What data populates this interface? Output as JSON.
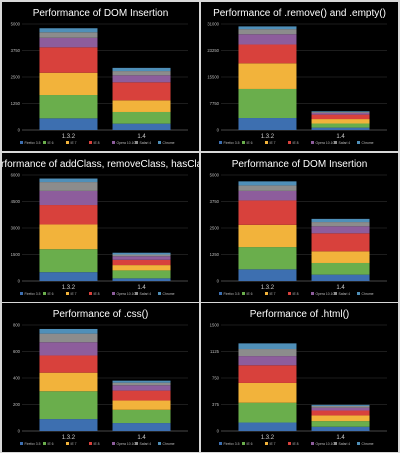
{
  "series_colors": [
    "#3d6fb0",
    "#6aae4c",
    "#f2b33b",
    "#d8413c",
    "#8d5d9c",
    "#8c8c8c",
    "#4f8fb8",
    "#c8c8c8"
  ],
  "chart_data": [
    {
      "type": "bar",
      "title": "Performance of DOM Insertion",
      "categories": [
        "1.3.2",
        "1.4"
      ],
      "legend": [
        "Firefox 3.5",
        "IE 6",
        "IE 7",
        "IE 8",
        "Opera 10.10",
        "Safari 4",
        "Chrome"
      ],
      "ylim": [
        0,
        5000
      ],
      "yticks": [
        "0",
        "1250",
        "2500",
        "3750",
        "5000"
      ],
      "series": [
        {
          "name": "Firefox 3.5",
          "values": [
            550,
            300
          ]
        },
        {
          "name": "IE 6",
          "values": [
            1100,
            550
          ]
        },
        {
          "name": "IE 7",
          "values": [
            1050,
            550
          ]
        },
        {
          "name": "IE 8",
          "values": [
            1200,
            850
          ]
        },
        {
          "name": "Opera 10.10",
          "values": [
            450,
            330
          ]
        },
        {
          "name": "Safari 4",
          "values": [
            260,
            200
          ]
        },
        {
          "name": "Chrome",
          "values": [
            190,
            150
          ]
        }
      ]
    },
    {
      "type": "bar",
      "title": "Performance of .remove() and .empty()",
      "categories": [
        "1.3.2",
        "1.4"
      ],
      "legend": [
        "Firefox 3.5",
        "IE 6",
        "IE 7",
        "IE 8",
        "Opera 10.10",
        "Safari 4",
        "Chrome"
      ],
      "ylim": [
        0,
        31000
      ],
      "yticks": [
        "0",
        "7750",
        "15500",
        "23250",
        "31000"
      ],
      "series": [
        {
          "name": "Firefox 3.5",
          "values": [
            3500,
            700
          ]
        },
        {
          "name": "IE 6",
          "values": [
            8500,
            1200
          ]
        },
        {
          "name": "IE 7",
          "values": [
            7500,
            1300
          ]
        },
        {
          "name": "IE 8",
          "values": [
            5500,
            1300
          ]
        },
        {
          "name": "Opera 10.10",
          "values": [
            3000,
            500
          ]
        },
        {
          "name": "Safari 4",
          "values": [
            1500,
            300
          ]
        },
        {
          "name": "Chrome",
          "values": [
            800,
            200
          ]
        }
      ]
    },
    {
      "type": "bar",
      "title": "Performance of addClass, removeClass, hasClass",
      "categories": [
        "1.3.2",
        "1.4"
      ],
      "legend": [
        "Firefox 3.5",
        "IE 6",
        "IE 7",
        "IE 8",
        "Opera 10.10",
        "Safari 4",
        "Chrome"
      ],
      "ylim": [
        0,
        6000
      ],
      "yticks": [
        "0",
        "1500",
        "3000",
        "4500",
        "6000"
      ],
      "series": [
        {
          "name": "Firefox 3.5",
          "values": [
            500,
            150
          ]
        },
        {
          "name": "IE 6",
          "values": [
            1300,
            450
          ]
        },
        {
          "name": "IE 7",
          "values": [
            1400,
            300
          ]
        },
        {
          "name": "IE 8",
          "values": [
            1100,
            300
          ]
        },
        {
          "name": "Opera 10.10",
          "values": [
            800,
            200
          ]
        },
        {
          "name": "Safari 4",
          "values": [
            500,
            100
          ]
        },
        {
          "name": "Chrome",
          "values": [
            200,
            100
          ]
        }
      ]
    },
    {
      "type": "bar",
      "title": "Performance of DOM Insertion",
      "categories": [
        "1.3.2",
        "1.4"
      ],
      "legend": [
        "Firefox 3.5",
        "IE 6",
        "IE 7",
        "IE 8",
        "Opera 10.10",
        "Safari 4",
        "Chrome"
      ],
      "ylim": [
        0,
        5000
      ],
      "yticks": [
        "0",
        "1250",
        "2500",
        "3750",
        "5000"
      ],
      "series": [
        {
          "name": "Firefox 3.5",
          "values": [
            550,
            300
          ]
        },
        {
          "name": "IE 6",
          "values": [
            1050,
            550
          ]
        },
        {
          "name": "IE 7",
          "values": [
            1050,
            550
          ]
        },
        {
          "name": "IE 8",
          "values": [
            1150,
            850
          ]
        },
        {
          "name": "Opera 10.10",
          "values": [
            450,
            330
          ]
        },
        {
          "name": "Safari 4",
          "values": [
            260,
            200
          ]
        },
        {
          "name": "Chrome",
          "values": [
            190,
            150
          ]
        }
      ]
    },
    {
      "type": "bar",
      "title": "Performance of .css()",
      "categories": [
        "1.3.2",
        "1.4"
      ],
      "legend": [
        "Firefox 3.5",
        "IE 6",
        "IE 7",
        "IE 8",
        "Opera 10.10",
        "Safari 4",
        "Chrome"
      ],
      "ylim": [
        0,
        800
      ],
      "yticks": [
        "0",
        "200",
        "400",
        "600",
        "800"
      ],
      "series": [
        {
          "name": "Firefox 3.5",
          "values": [
            90,
            60
          ]
        },
        {
          "name": "IE 6",
          "values": [
            210,
            100
          ]
        },
        {
          "name": "IE 7",
          "values": [
            140,
            70
          ]
        },
        {
          "name": "IE 8",
          "values": [
            130,
            75
          ]
        },
        {
          "name": "Opera 10.10",
          "values": [
            100,
            40
          ]
        },
        {
          "name": "Safari 4",
          "values": [
            65,
            20
          ]
        },
        {
          "name": "Chrome",
          "values": [
            35,
            15
          ]
        }
      ]
    },
    {
      "type": "bar",
      "title": "Performance of .html()",
      "categories": [
        "1.3.2",
        "1.4"
      ],
      "legend": [
        "Firefox 3.5",
        "IE 6",
        "IE 7",
        "IE 8",
        "Opera 10.10",
        "Safari 4",
        "Chrome"
      ],
      "ylim": [
        0,
        1500
      ],
      "yticks": [
        "0",
        "375",
        "750",
        "1125",
        "1500"
      ],
      "series": [
        {
          "name": "Firefox 3.5",
          "values": [
            120,
            60
          ]
        },
        {
          "name": "IE 6",
          "values": [
            280,
            80
          ]
        },
        {
          "name": "IE 7",
          "values": [
            280,
            80
          ]
        },
        {
          "name": "IE 8",
          "values": [
            250,
            70
          ]
        },
        {
          "name": "Opera 10.10",
          "values": [
            130,
            40
          ]
        },
        {
          "name": "Safari 4",
          "values": [
            100,
            25
          ]
        },
        {
          "name": "Chrome",
          "values": [
            80,
            15
          ]
        }
      ]
    }
  ]
}
